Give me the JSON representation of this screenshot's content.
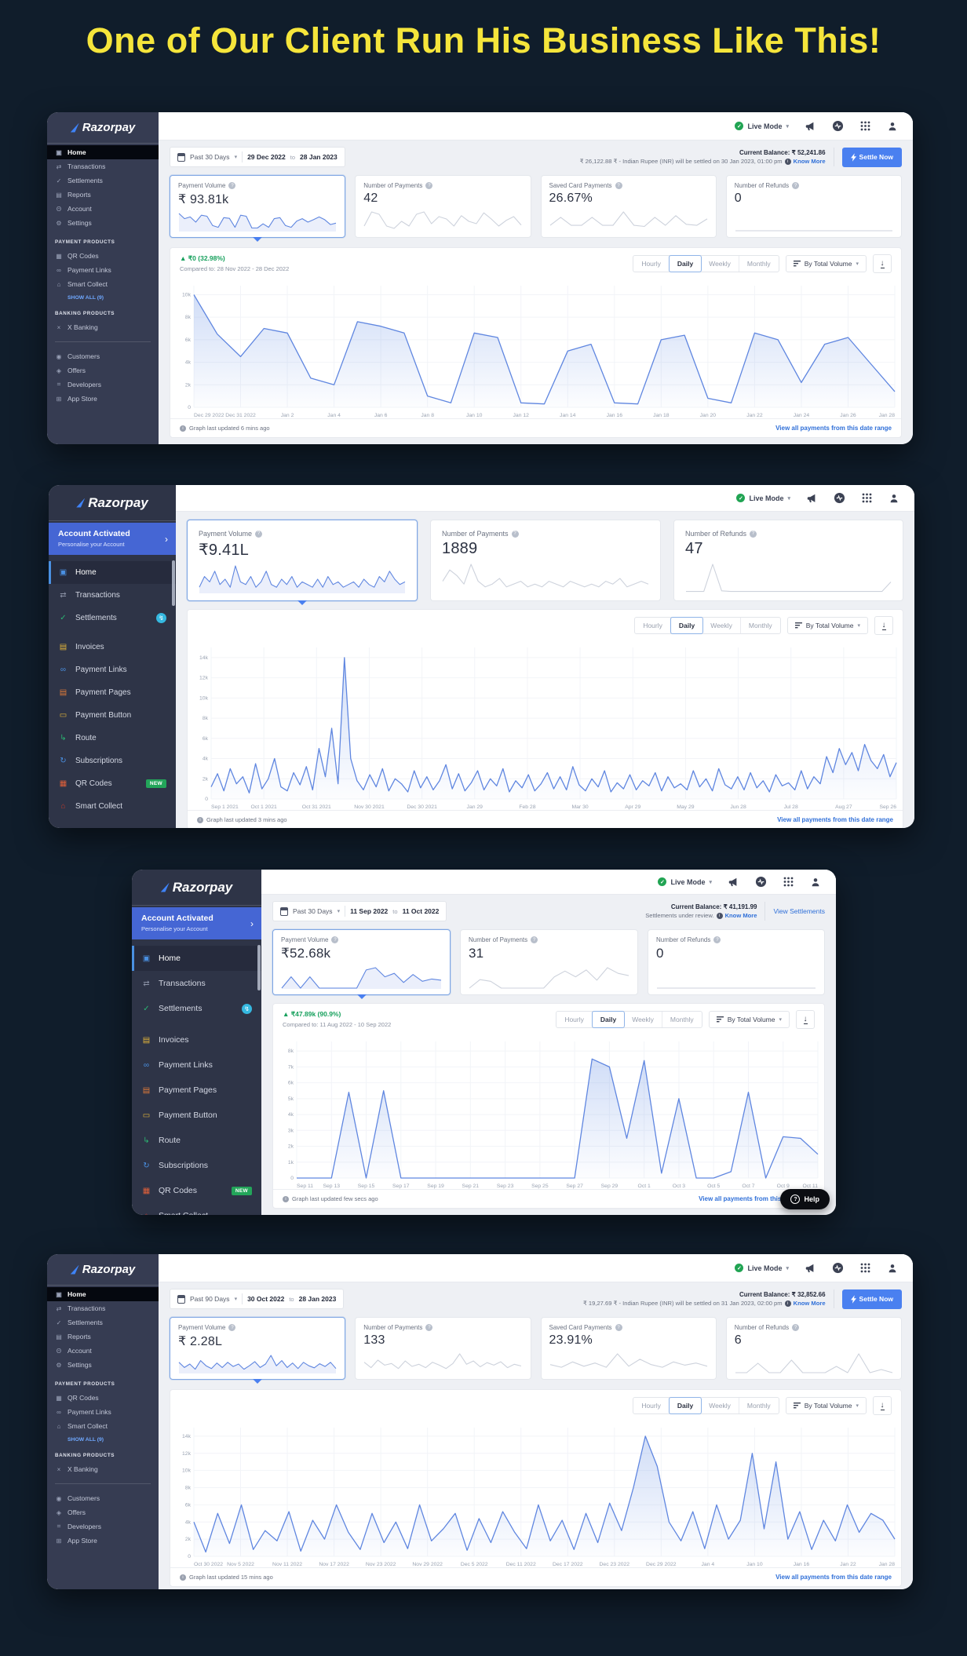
{
  "page": {
    "headline": "One of Our Client Run His Business Like This!"
  },
  "common": {
    "brand": "Razorpay",
    "live_mode": "Live Mode",
    "to_word": "to",
    "know_more": "Know More",
    "settle_now": "Settle Now",
    "by_total_volume": "By Total Volume",
    "tabs": [
      {
        "label": "Hourly"
      },
      {
        "label": "Daily",
        "active": true
      },
      {
        "label": "Weekly"
      },
      {
        "label": "Monthly"
      }
    ],
    "view_link": "View all payments from this date range",
    "payment_products": "PAYMENT PRODUCTS",
    "banking_products": "BANKING PRODUCTS",
    "show_all": "SHOW ALL (9)",
    "account_activated": "Account Activated",
    "personalise": "Personalise your Account",
    "help": "Help",
    "accent_blue": "#4a80f0",
    "line_blue": "#5f86e0",
    "green": "#16a05c",
    "yellow": "#f5e53b"
  },
  "sidebar_v1": {
    "items_main": [
      {
        "icon": "▣",
        "label": "Home",
        "active": true
      },
      {
        "icon": "⇄",
        "label": "Transactions"
      },
      {
        "icon": "✓",
        "label": "Settlements"
      },
      {
        "icon": "▤",
        "label": "Reports"
      },
      {
        "icon": "Θ",
        "label": "Account"
      },
      {
        "icon": "⚙",
        "label": "Settings"
      }
    ],
    "items_payment": [
      {
        "icon": "▦",
        "label": "QR Codes"
      },
      {
        "icon": "∞",
        "label": "Payment Links"
      },
      {
        "icon": "⌂",
        "label": "Smart Collect"
      }
    ],
    "items_banking": [
      {
        "icon": "×",
        "label": "X Banking"
      }
    ],
    "items_bottom": [
      {
        "icon": "◉",
        "label": "Customers"
      },
      {
        "icon": "◈",
        "label": "Offers"
      },
      {
        "icon": "⌗",
        "label": "Developers"
      },
      {
        "icon": "⊞",
        "label": "App Store"
      }
    ]
  },
  "sidebar_v2": {
    "items": [
      {
        "icon": "▣",
        "label": "Home",
        "active": true,
        "color": "#4a90e2"
      },
      {
        "icon": "⇄",
        "label": "Transactions",
        "color": "#8a91a5"
      },
      {
        "icon": "✓",
        "label": "Settlements",
        "color": "#2bb673",
        "badge": "↯",
        "badge_class": "dot"
      },
      {
        "icon": "▤",
        "label": "Invoices",
        "color": "#e3b53a",
        "gap": true
      },
      {
        "icon": "∞",
        "label": "Payment Links",
        "color": "#4a90e2"
      },
      {
        "icon": "▤",
        "label": "Payment Pages",
        "color": "#e07b39"
      },
      {
        "icon": "▭",
        "label": "Payment Button",
        "color": "#e3b53a"
      },
      {
        "icon": "↳",
        "label": "Route",
        "color": "#2bb673"
      },
      {
        "icon": "↻",
        "label": "Subscriptions",
        "color": "#4a90e2"
      },
      {
        "icon": "▦",
        "label": "QR Codes",
        "color": "#e0603a",
        "badge": "NEW",
        "badge_class": "new"
      },
      {
        "icon": "⌂",
        "label": "Smart Collect",
        "color": "#c0392b"
      }
    ]
  },
  "dash1": {
    "filter": {
      "preset": "Past 30 Days",
      "from": "29 Dec 2022",
      "to": "28 Jan 2023"
    },
    "balance": {
      "label": "Current Balance:",
      "amount": "₹ 52,241.86",
      "note": "₹ 26,122.88 ₹ - Indian Rupee (INR) will be settled on 30 Jan 2023, 01:00 pm"
    },
    "cards": [
      {
        "label": "Payment Volume",
        "value": "₹ 93.81k",
        "selected": true,
        "spark": [
          5,
          3.5,
          4,
          2.5,
          4.5,
          4.2,
          1.5,
          1,
          3.8,
          3.6,
          1,
          4.5,
          4.2,
          0.8,
          0.8,
          2,
          1,
          3.5,
          3.8,
          1.5,
          1,
          2.8,
          3.5,
          2.5,
          3.2,
          4,
          3.2,
          1.8,
          2.2
        ]
      },
      {
        "label": "Number of Payments",
        "value": "42",
        "spark": [
          1,
          4,
          3.5,
          1,
          0.5,
          2,
          1,
          3.5,
          4,
          1.5,
          3,
          2.5,
          1,
          3.2,
          2,
          1.5,
          3.8,
          2.5,
          1,
          2.2,
          3,
          1.2
        ]
      },
      {
        "label": "Saved Card Payments",
        "value": "26.67%",
        "spark": [
          1,
          2.5,
          1,
          1,
          2.5,
          1,
          1,
          3.5,
          1,
          0.8,
          2.5,
          1,
          2.8,
          1.2,
          1,
          2.2
        ]
      },
      {
        "label": "Number of Refunds",
        "value": "0",
        "spark": [
          0,
          0,
          0,
          0,
          0,
          0,
          0,
          0,
          0,
          0,
          0,
          0
        ]
      }
    ],
    "chart_header": {
      "delta": "▲ ₹0 (32.98%)",
      "compared": "Compared to: 28 Nov 2022 - 28 Dec 2022"
    },
    "footer": {
      "updated": "Graph last updated 6 mins ago"
    }
  },
  "dash2": {
    "cards": [
      {
        "label": "Payment Volume",
        "value": "₹9.41L",
        "selected": true,
        "spark": [
          1,
          3,
          2,
          4,
          1.5,
          2.5,
          1,
          5,
          2,
          1.5,
          3,
          1,
          2,
          4,
          1.5,
          1,
          2.5,
          1.5,
          3,
          1,
          2,
          1.5,
          1,
          2.5,
          1,
          3,
          1.5,
          2,
          1,
          1.5,
          2,
          1,
          2.5,
          1.5,
          1,
          3,
          2,
          4,
          2.5,
          1.5,
          2
        ]
      },
      {
        "label": "Number of Payments",
        "value": "1889",
        "spark": [
          2,
          4,
          3,
          1.5,
          5,
          2,
          1,
          1.5,
          2.5,
          1,
          1.5,
          2,
          1,
          1.5,
          1,
          2,
          1.5,
          1,
          2,
          1.5,
          1,
          1.5,
          1,
          2,
          1.5,
          2.5,
          1,
          1.5,
          2,
          1.5
        ]
      },
      {
        "label": "Number of Refunds",
        "value": "47",
        "spark": [
          0.3,
          0.3,
          0.3,
          8,
          0.5,
          0.3,
          0.3,
          0.3,
          0.3,
          0.3,
          0.3,
          0.3,
          0.3,
          0.3,
          0.3,
          0.3,
          0.3,
          0.3,
          0.3,
          0.3,
          0.3,
          0.3,
          0.3,
          3
        ]
      }
    ],
    "footer": {
      "updated": "Graph last updated 3 mins ago"
    }
  },
  "dash3": {
    "filter": {
      "preset": "Past 30 Days",
      "from": "11 Sep 2022",
      "to": "11 Oct 2022"
    },
    "balance": {
      "label": "Current Balance:",
      "amount": "₹ 41,191.99",
      "note": "Settlements under review.",
      "view": "View Settlements"
    },
    "cards": [
      {
        "label": "Payment Volume",
        "value": "₹52.68k",
        "selected": true,
        "spark": [
          0,
          2,
          0,
          2,
          0,
          0,
          0,
          0,
          0,
          3.2,
          3.6,
          2,
          2.6,
          1,
          2.4,
          1.2,
          1.6,
          1.4
        ]
      },
      {
        "label": "Number of Payments",
        "value": "31",
        "spark": [
          0,
          1.5,
          1.2,
          0,
          0,
          0,
          0,
          0,
          2,
          3,
          2,
          3.2,
          1.4,
          3.6,
          2.6,
          2.2
        ]
      },
      {
        "label": "Number of Refunds",
        "value": "0",
        "spark": [
          0,
          0,
          0,
          0,
          0,
          0,
          0,
          0,
          0,
          0
        ]
      }
    ],
    "chart_header": {
      "delta": "▲ ₹47.89k (90.9%)",
      "compared": "Compared to: 11 Aug 2022 - 10 Sep 2022"
    },
    "footer": {
      "updated": "Graph last updated few secs ago"
    }
  },
  "dash4": {
    "filter": {
      "preset": "Past 90 Days",
      "from": "30 Oct 2022",
      "to": "28 Jan 2023"
    },
    "balance": {
      "label": "Current Balance:",
      "amount": "₹ 32,852.66",
      "note": "₹ 19,27.69 ₹ - Indian Rupee (INR) will be settled on 31 Jan 2023, 02:00 pm"
    },
    "cards": [
      {
        "label": "Payment Volume",
        "value": "₹ 2.28L",
        "selected": true,
        "spark": [
          3,
          1.5,
          2.5,
          1,
          3.5,
          2,
          1.2,
          2.8,
          1.5,
          3,
          1.8,
          2.5,
          1,
          2,
          3.2,
          1.5,
          2.5,
          5,
          2,
          3.5,
          1.5,
          2.8,
          1.2,
          3,
          2,
          1.4,
          2.6,
          1.8,
          3,
          1.2
        ]
      },
      {
        "label": "Number of Payments",
        "value": "133",
        "spark": [
          2.5,
          1.2,
          3,
          1.8,
          2.2,
          1,
          2.8,
          1.5,
          2,
          1.2,
          2.5,
          1.8,
          1,
          2.2,
          4.5,
          2,
          2.8,
          1.4,
          2.4,
          1.8,
          2.6,
          1.2,
          2,
          1.6
        ]
      },
      {
        "label": "Saved Card Payments",
        "value": "23.91%",
        "spark": [
          1.5,
          1,
          2,
          1.2,
          1.8,
          1,
          3.5,
          1.2,
          2.5,
          1.5,
          1,
          2,
          1.4,
          1.8,
          1.2
        ]
      },
      {
        "label": "Number of Refunds",
        "value": "6",
        "spark": [
          0,
          0,
          1.5,
          0,
          0,
          2,
          0,
          0,
          0,
          1,
          0,
          3,
          0,
          0.5,
          0
        ]
      }
    ],
    "footer": {
      "updated": "Graph last updated 15 mins ago"
    }
  },
  "chart_data": [
    {
      "type": "area",
      "grid": true,
      "ylim": [
        0,
        10.8
      ],
      "y_max": 10.8,
      "y_ticks": [
        "10k",
        "8k",
        "6k",
        "4k",
        "2k",
        "0"
      ],
      "x_labels": [
        "Dec 29 2022",
        "Dec 31 2022",
        "Jan 2",
        "Jan 4",
        "Jan 6",
        "Jan 8",
        "Jan 10",
        "Jan 12",
        "Jan 14",
        "Jan 16",
        "Jan 18",
        "Jan 20",
        "Jan 22",
        "Jan 24",
        "Jan 26",
        "Jan 28"
      ],
      "values": [
        10,
        6.5,
        4.5,
        7,
        6.6,
        2.6,
        2,
        7.6,
        7.2,
        6.6,
        1,
        0.4,
        6.6,
        6.2,
        0.4,
        0.3,
        5,
        5.6,
        0.4,
        0.3,
        6,
        6.4,
        0.8,
        0.4,
        6.6,
        6,
        2.2,
        5.6,
        6.2,
        3.8,
        1.4
      ]
    },
    {
      "type": "area",
      "grid": true,
      "ylim": [
        0,
        15
      ],
      "y_max": 15,
      "y_ticks": [
        "14k",
        "12k",
        "10k",
        "8k",
        "6k",
        "4k",
        "2k",
        "0"
      ],
      "x_labels": [
        "Sep 1 2021",
        "Oct 1 2021",
        "Oct 31 2021",
        "Nov 30 2021",
        "Dec 30 2021",
        "Jan 29",
        "Feb 28",
        "Mar 30",
        "Apr 29",
        "May 29",
        "Jun 28",
        "Jul 28",
        "Aug 27",
        "Sep 26"
      ],
      "values": [
        1.2,
        2.5,
        0.8,
        3,
        1.5,
        2.2,
        0.6,
        3.5,
        1,
        2,
        4,
        1.2,
        0.8,
        2.6,
        1.4,
        3.2,
        0.9,
        5,
        2.2,
        7,
        1.5,
        14,
        4,
        1.8,
        0.9,
        2.4,
        1.2,
        3,
        0.8,
        2,
        1.5,
        0.7,
        2.8,
        1.1,
        2.2,
        0.9,
        1.8,
        3.4,
        1,
        2.5,
        0.8,
        1.6,
        2.8,
        0.9,
        2,
        1.3,
        3,
        0.7,
        1.8,
        1.1,
        2.4,
        0.8,
        1.5,
        2.6,
        1,
        2.2,
        0.9,
        3.2,
        1.4,
        0.8,
        2,
        1.2,
        2.8,
        0.7,
        1.6,
        1,
        2.4,
        0.9,
        1.8,
        1.3,
        2.6,
        0.8,
        2.2,
        1.1,
        1.5,
        0.9,
        2.8,
        1.2,
        2,
        0.8,
        3,
        1.4,
        1,
        2.2,
        0.9,
        2.6,
        1.1,
        1.8,
        0.7,
        2.4,
        1.3,
        1.6,
        0.9,
        2.8,
        1,
        2.2,
        1.5,
        4.2,
        2.6,
        5,
        3.4,
        4.6,
        2.8,
        5.4,
        3.8,
        3,
        4.4,
        2.2,
        3.6
      ]
    },
    {
      "type": "area",
      "grid": true,
      "ylim": [
        0,
        8.6
      ],
      "y_max": 8.6,
      "y_ticks": [
        "8k",
        "7k",
        "6k",
        "5k",
        "4k",
        "3k",
        "2k",
        "1k",
        "0"
      ],
      "x_labels": [
        "Sep 11",
        "Sep 13",
        "Sep 15",
        "Sep 17",
        "Sep 19",
        "Sep 21",
        "Sep 23",
        "Sep 25",
        "Sep 27",
        "Sep 29",
        "Oct 1",
        "Oct 3",
        "Oct 5",
        "Oct 7",
        "Oct 9",
        "Oct 11"
      ],
      "values": [
        0,
        0,
        0,
        5.4,
        0,
        5.5,
        0,
        0,
        0,
        0,
        0,
        0,
        0,
        0,
        0,
        0,
        0,
        7.5,
        7,
        2.5,
        7.4,
        0.3,
        5,
        0,
        0,
        0.4,
        5.4,
        0,
        2.6,
        2.5,
        1.5
      ]
    },
    {
      "type": "area",
      "grid": true,
      "ylim": [
        0,
        15
      ],
      "y_max": 15,
      "y_ticks": [
        "14k",
        "12k",
        "10k",
        "8k",
        "6k",
        "4k",
        "2k",
        "0"
      ],
      "x_labels": [
        "Oct 30 2022",
        "Nov 5 2022",
        "Nov 11 2022",
        "Nov 17 2022",
        "Nov 23 2022",
        "Nov 29 2022",
        "Dec 5 2022",
        "Dec 11 2022",
        "Dec 17 2022",
        "Dec 23 2022",
        "Dec 29 2022",
        "Jan 4",
        "Jan 10",
        "Jan 16",
        "Jan 22",
        "Jan 28"
      ],
      "values": [
        4,
        0.5,
        5,
        1.5,
        6,
        0.8,
        3,
        1.8,
        5.2,
        0.6,
        4.2,
        2,
        6,
        2.8,
        0.8,
        5,
        1.6,
        4,
        0.9,
        6,
        1.8,
        3.2,
        5,
        0.7,
        4.4,
        1.6,
        5.2,
        2.8,
        0.9,
        6,
        1.8,
        4.2,
        0.8,
        5,
        1.6,
        6.2,
        3,
        8,
        14,
        10.5,
        4,
        1.8,
        5.2,
        0.9,
        6,
        2,
        4.2,
        12,
        3.2,
        11,
        2,
        5.2,
        0.8,
        4.2,
        1.8,
        6,
        2.8,
        5,
        4.2,
        2
      ]
    }
  ]
}
